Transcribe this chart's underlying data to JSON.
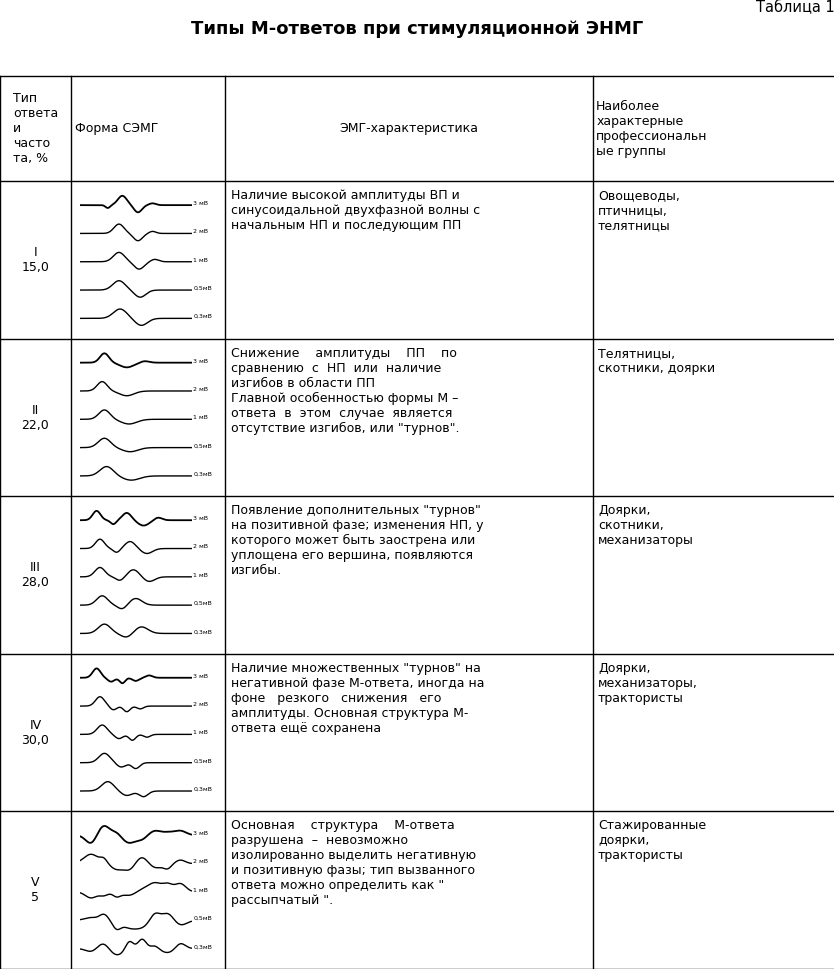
{
  "table_label": "Таблица 1",
  "title": "Типы М-ответов при стимуляционной ЭНМГ",
  "col_header_0": "Тип\nответа\nи\nчасто\nта, %",
  "col_header_1": "Форма СЭМГ",
  "col_header_2": "ЭМГ-характеристика",
  "col_header_3": "Наиболее\nхарактерные\nпрофессиональн\nые группы",
  "rows": [
    {
      "type_label": "I\n15,0",
      "emg_description": "Наличие высокой амплитуды ВП и\nсинусоидальной двухфазной волны с\nначальным НП и последующим ПП",
      "prof_groups": "Овощеводы,\nптичницы,\nтелятницы",
      "wave_type": 1
    },
    {
      "type_label": "II\n22,0",
      "emg_description": "Снижение    амплитуды    ПП    по\nсравнению  с  НП  или  наличие\nизгибов в области ПП\nГлавной особенностью формы М –\nответа  в  этом  случае  является\nотсутствие изгибов, или \"турнов\".",
      "prof_groups": "Телятницы,\nскотники, доярки",
      "wave_type": 2
    },
    {
      "type_label": "III\n28,0",
      "emg_description": "Появление дополнительных \"турнов\"\nна позитивной фазе; изменения НП, у\nкоторого может быть заострена или\nуплощена его вершина, появляются\nизгибы.",
      "prof_groups": "Доярки,\nскотники,\nмеханизаторы",
      "wave_type": 3
    },
    {
      "type_label": "IV\n30,0",
      "emg_description": "Наличие множественных \"турнов\" на\nнегативной фазе М-ответа, иногда на\nфоне   резкого   снижения   его\nамплитуды. Основная структура М-\nответа ещё сохранена",
      "prof_groups": "Доярки,\nмеханизаторы,\nтрактористы",
      "wave_type": 4
    },
    {
      "type_label": "V\n5",
      "emg_description": "Основная    структура    М-ответа\nразрушена  –  невозможно\nизолированно выделить негативную\nи позитивную фазы; тип вызванного\nответа можно определить как \"\nрассыпчатый \".",
      "prof_groups": "Стажированные\nдоярки,\nтрактористы",
      "wave_type": 5
    }
  ],
  "background_color": "#ffffff",
  "text_color": "#000000",
  "line_color": "#000000"
}
